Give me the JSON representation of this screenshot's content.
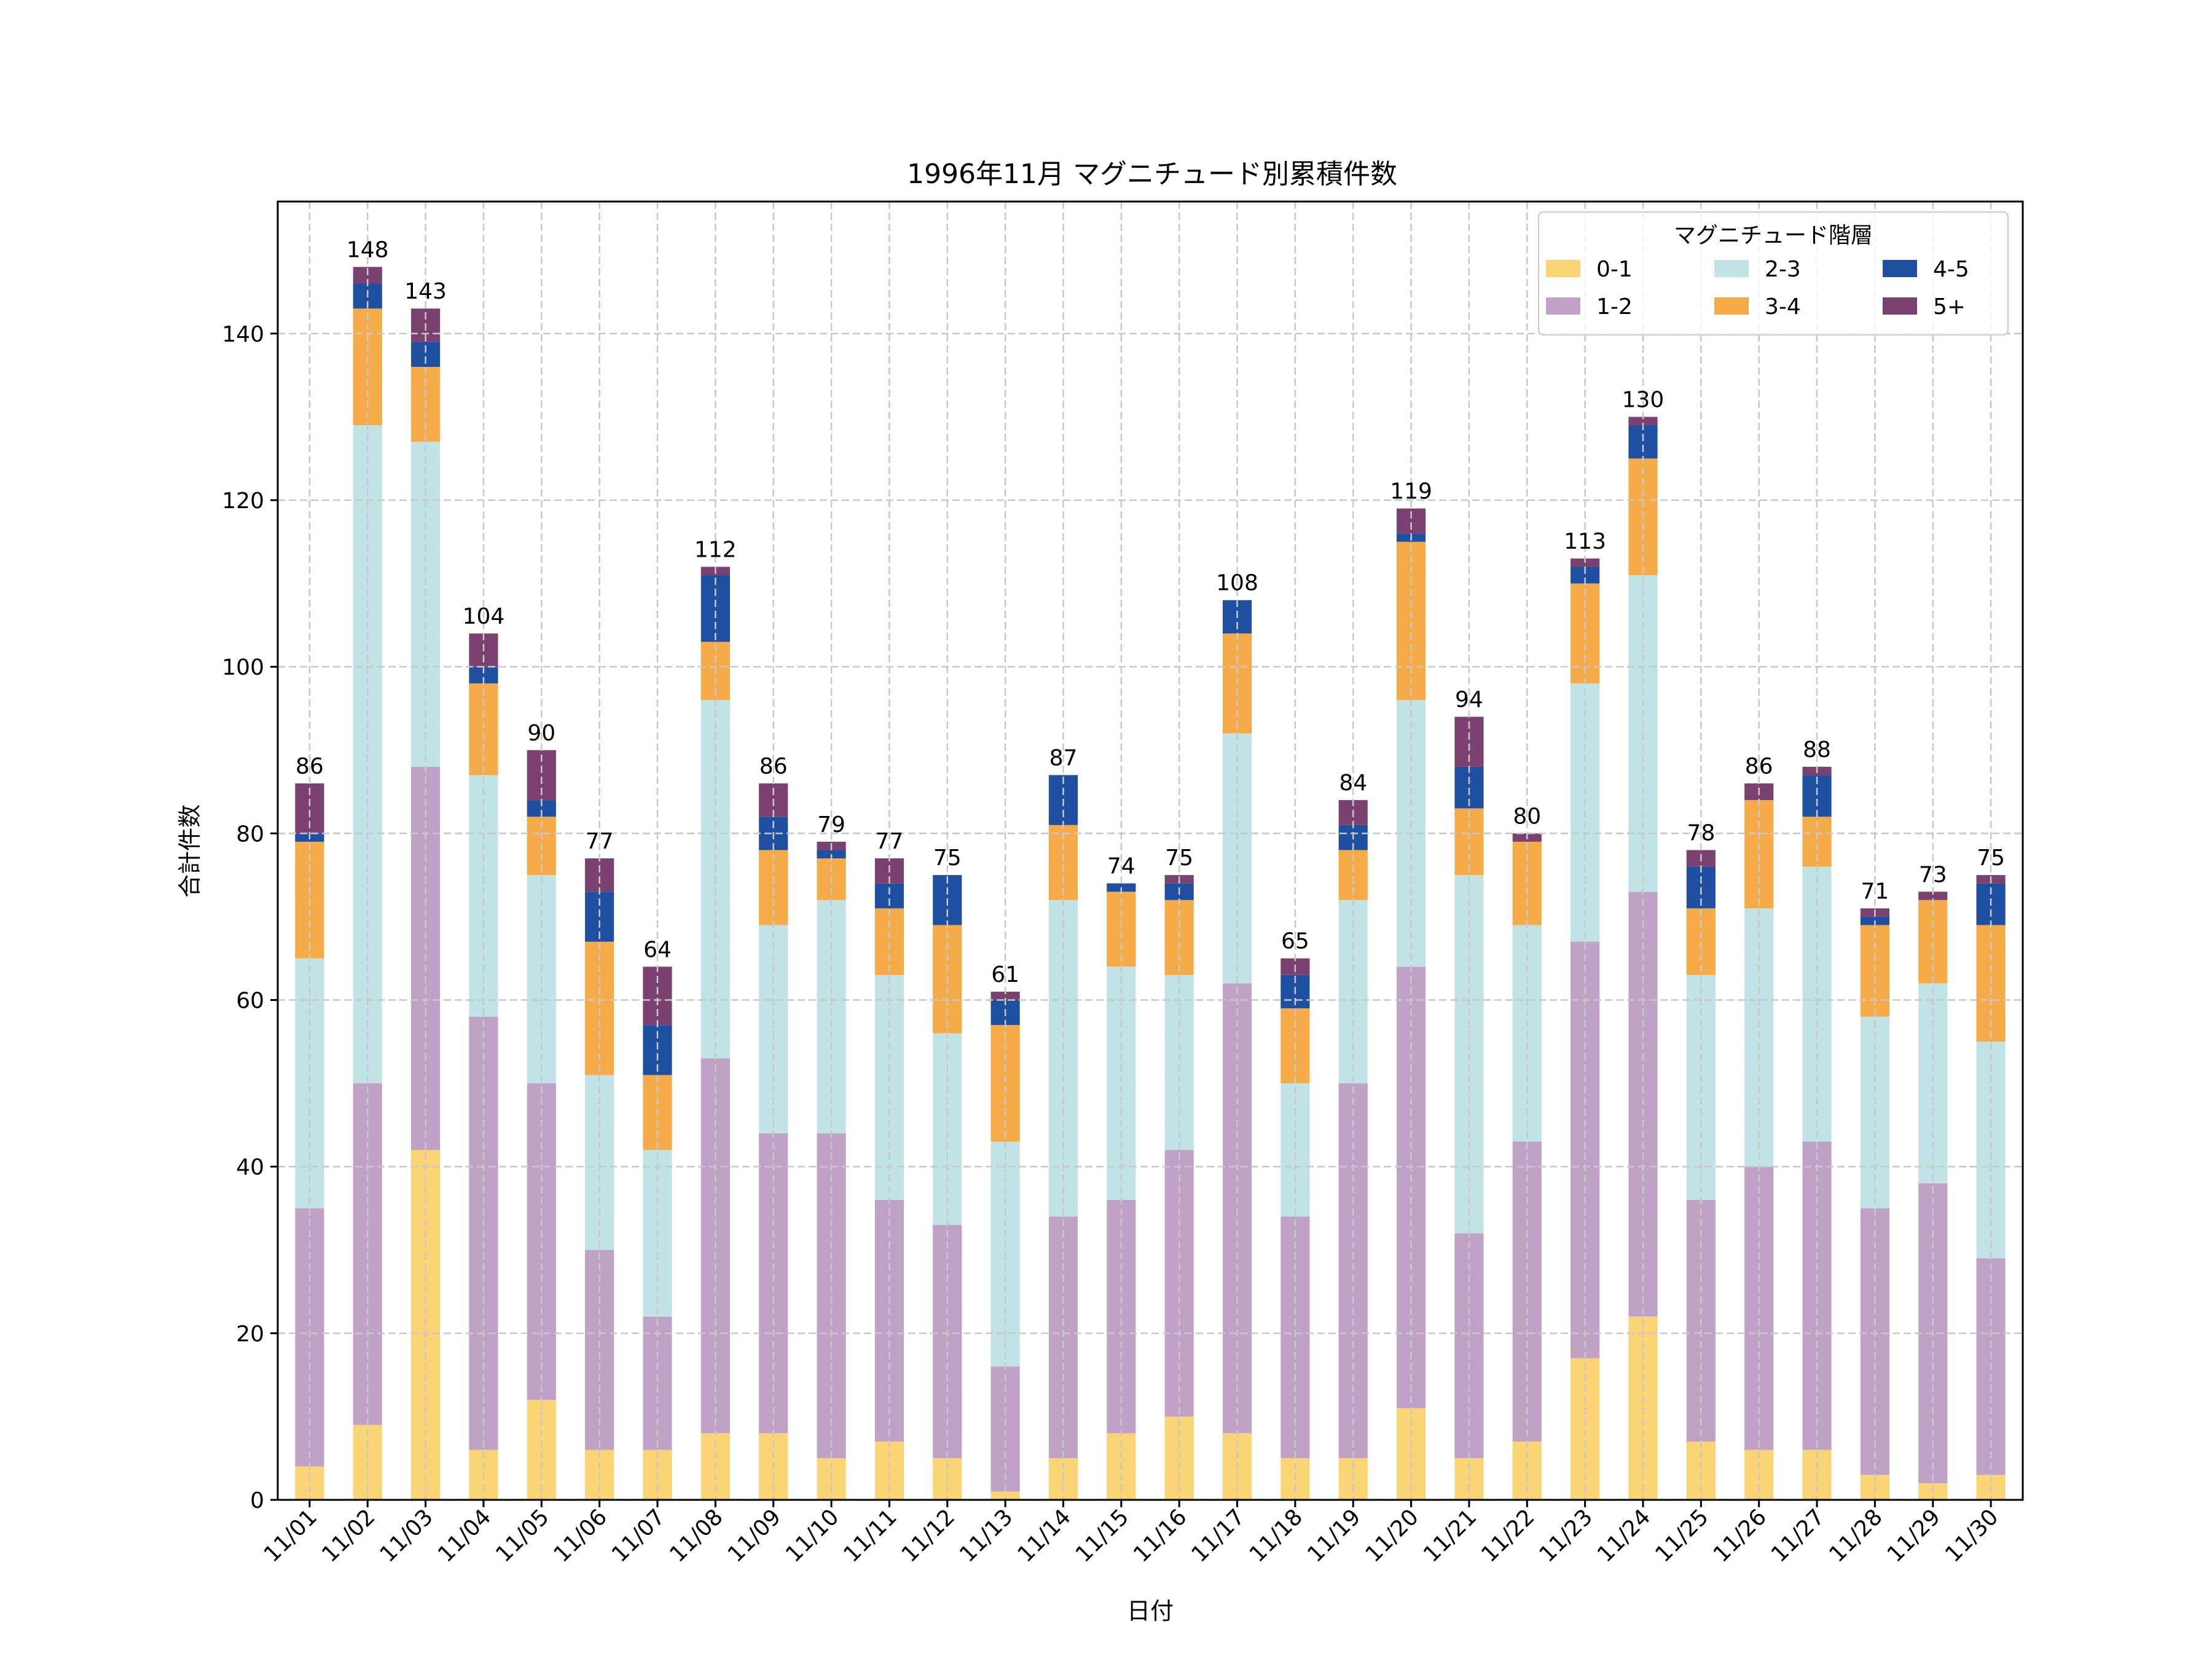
{
  "chart_data": {
    "type": "bar",
    "stacked": true,
    "title": "1996年11月 マグニチュード別累積件数",
    "xlabel": "日付",
    "ylabel": "合計件数",
    "ylim": [
      0,
      155
    ],
    "yticks": [
      0,
      20,
      40,
      60,
      80,
      100,
      120,
      140
    ],
    "grid": true,
    "legend": {
      "title": "マグニチュード階層",
      "placement": "top-right",
      "ncol": 3
    },
    "categories": [
      "11/01",
      "11/02",
      "11/03",
      "11/04",
      "11/05",
      "11/06",
      "11/07",
      "11/08",
      "11/09",
      "11/10",
      "11/11",
      "11/12",
      "11/13",
      "11/14",
      "11/15",
      "11/16",
      "11/17",
      "11/18",
      "11/19",
      "11/20",
      "11/21",
      "11/22",
      "11/23",
      "11/24",
      "11/25",
      "11/26",
      "11/27",
      "11/28",
      "11/29",
      "11/30"
    ],
    "series": [
      {
        "name": "0-1",
        "color": "#fbd476",
        "values": [
          4,
          9,
          42,
          6,
          12,
          6,
          6,
          8,
          8,
          5,
          7,
          5,
          1,
          5,
          8,
          10,
          8,
          5,
          5,
          11,
          5,
          7,
          17,
          22,
          7,
          6,
          6,
          3,
          2,
          3
        ]
      },
      {
        "name": "1-2",
        "color": "#c0a2c7",
        "values": [
          31,
          41,
          46,
          52,
          38,
          24,
          16,
          45,
          36,
          39,
          29,
          28,
          15,
          29,
          28,
          32,
          54,
          29,
          45,
          53,
          27,
          36,
          50,
          51,
          29,
          34,
          37,
          32,
          36,
          26
        ]
      },
      {
        "name": "2-3",
        "color": "#c2e3e6",
        "values": [
          30,
          79,
          39,
          29,
          25,
          21,
          20,
          43,
          25,
          28,
          27,
          23,
          27,
          38,
          28,
          21,
          30,
          16,
          22,
          32,
          43,
          26,
          31,
          38,
          27,
          31,
          33,
          23,
          24,
          26
        ]
      },
      {
        "name": "3-4",
        "color": "#f5ab48",
        "values": [
          14,
          14,
          9,
          11,
          7,
          16,
          9,
          7,
          9,
          5,
          8,
          13,
          14,
          9,
          9,
          9,
          12,
          9,
          6,
          19,
          8,
          10,
          12,
          14,
          8,
          13,
          6,
          11,
          10,
          14
        ]
      },
      {
        "name": "4-5",
        "color": "#1f4fa0",
        "values": [
          1,
          3,
          3,
          2,
          2,
          6,
          6,
          8,
          4,
          1,
          3,
          6,
          3,
          6,
          1,
          2,
          4,
          4,
          3,
          1,
          5,
          0,
          2,
          4,
          5,
          0,
          5,
          1,
          0,
          5
        ]
      },
      {
        "name": "5+",
        "color": "#7b4170",
        "values": [
          6,
          2,
          4,
          4,
          6,
          4,
          7,
          1,
          4,
          1,
          3,
          0,
          1,
          0,
          0,
          1,
          0,
          2,
          3,
          3,
          6,
          1,
          1,
          1,
          2,
          2,
          1,
          1,
          1,
          1
        ]
      }
    ],
    "totals": [
      86,
      148,
      143,
      104,
      90,
      77,
      64,
      112,
      86,
      79,
      77,
      75,
      61,
      87,
      74,
      75,
      108,
      65,
      84,
      119,
      94,
      80,
      113,
      130,
      78,
      86,
      88,
      71,
      73,
      75
    ]
  }
}
